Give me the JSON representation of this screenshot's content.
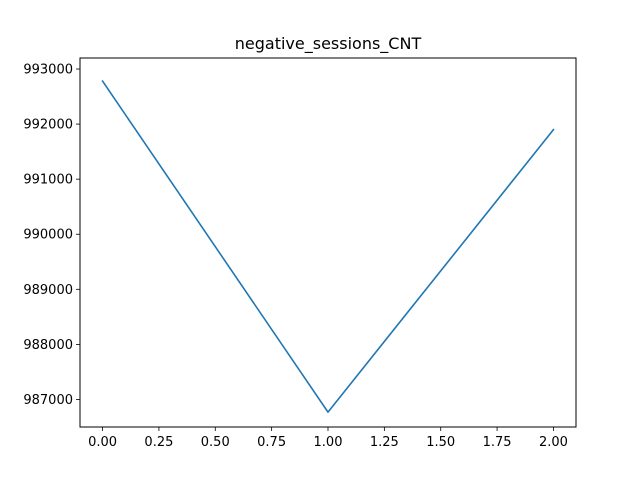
{
  "chart_data": {
    "type": "line",
    "title": "negative_sessions_CNT",
    "xlabel": "",
    "ylabel": "",
    "xlim": [
      -0.1,
      2.1
    ],
    "ylim": [
      986500,
      993200
    ],
    "x_ticks": [
      0.0,
      0.25,
      0.5,
      0.75,
      1.0,
      1.25,
      1.5,
      1.75,
      2.0
    ],
    "x_tick_labels": [
      "0.00",
      "0.25",
      "0.50",
      "0.75",
      "1.00",
      "1.25",
      "1.50",
      "1.75",
      "2.00"
    ],
    "y_ticks": [
      987000,
      988000,
      989000,
      990000,
      991000,
      992000,
      993000
    ],
    "y_tick_labels": [
      "987000",
      "988000",
      "989000",
      "990000",
      "991000",
      "992000",
      "993000"
    ],
    "grid": false,
    "series": [
      {
        "color": "#1f77b4",
        "x": [
          0,
          1,
          2
        ],
        "y": [
          992780,
          986770,
          991900
        ]
      }
    ]
  }
}
